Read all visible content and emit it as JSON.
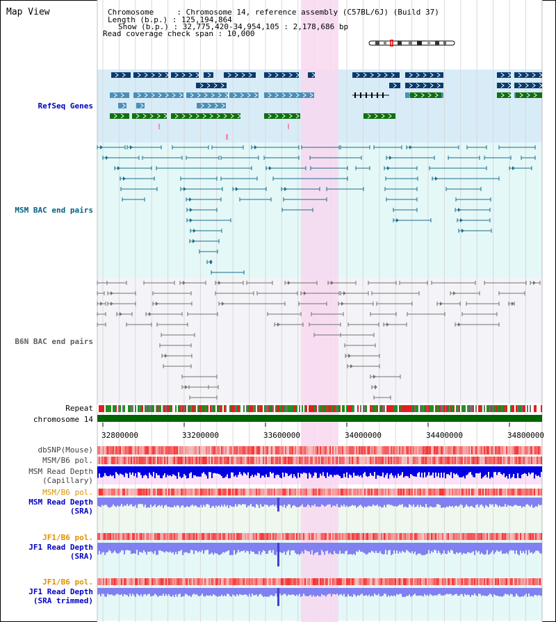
{
  "view_title": "Map View",
  "info": {
    "chromosome": "Chromosome     : Chromosome 14, reference assembly (C57BL/6J) (Build 37)",
    "length": "Length (b.p.) : 125,194,864",
    "show": "Show (b.p.) : 32,775,420-34,954,105 : 2,178,686 bp",
    "coverage": "Read coverage check span : 10,000"
  },
  "tracks": {
    "refseq": "RefSeq Genes",
    "msm_bac": "MSM BAC end pairs",
    "b6n_bac": "B6N BAC end pairs",
    "repeat": "Repeat",
    "chromosome": "chromosome 14",
    "dbsnp": "dbSNP(Mouse)",
    "msm_b6_pol": "MSM/B6 pol.",
    "msm_depth_cap_1": "MSM Read Depth",
    "msm_depth_cap_2": "(Capillary)",
    "msm_b6_pol_sra": "MSM/B6 pol.",
    "msm_depth_sra_1": "MSM Read Depth",
    "msm_depth_sra_2": "(SRA)",
    "jf1_b6_pol": "JF1/B6 pol.",
    "jf1_depth_sra_1": "JF1 Read Depth",
    "jf1_depth_sra_2": "(SRA)",
    "jf1_b6_pol_trim": "JF1/B6 pol.",
    "jf1_depth_trim_1": "JF1 Read Depth",
    "jf1_depth_trim_2": "(SRA trimmed)"
  },
  "axis_ticks": [
    "32800000",
    "33200000",
    "33600000",
    "34000000",
    "34400000",
    "34800000"
  ],
  "colors": {
    "refseq_bg": "#d8ecf8",
    "msm_bg": "#e4f8f8",
    "b6n_bg": "#f4f4f8",
    "highlight": "#f8d8f0",
    "gene_dark": "#0a3a6e",
    "gene_mid": "#4a90b8",
    "gene_green": "#107010",
    "msm_pair": "#1a6a8a",
    "b6n_pair": "#707070",
    "chromosome_bar": "#006400",
    "depth_blue": "#0000e0",
    "depth_sra": "#8080f0",
    "label_orange": "#e09000",
    "label_blue": "#0000c0",
    "label_teal": "#006080"
  }
}
